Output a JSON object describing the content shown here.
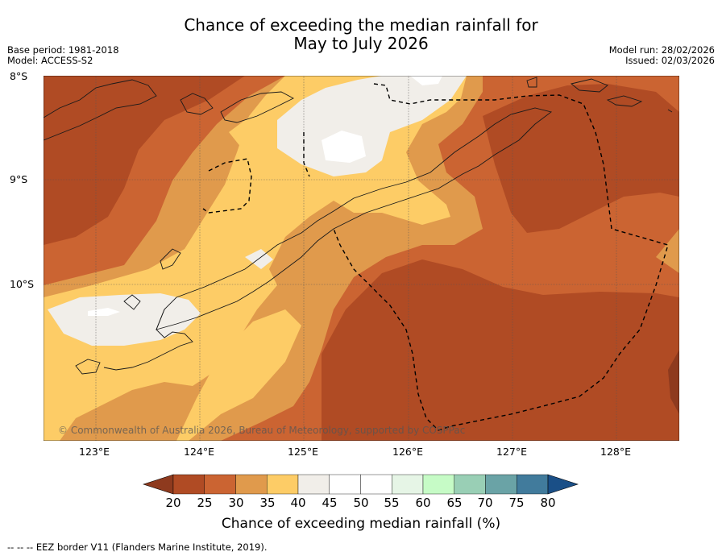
{
  "title": {
    "line1": "Chance of exceeding the median rainfall for",
    "line2": "May to July 2026"
  },
  "meta_left": {
    "base_period": "Base period: 1981-2018",
    "model": "Model: ACCESS-S2"
  },
  "meta_right": {
    "model_run": "Model run: 28/02/2026",
    "issued": "Issued: 02/03/2026"
  },
  "map": {
    "lat_labels": [
      "8°S",
      "9°S",
      "10°S"
    ],
    "lon_labels": [
      "123°E",
      "124°E",
      "125°E",
      "126°E",
      "127°E",
      "128°E"
    ],
    "copyright": "© Commonwealth of Australia 2026, Bureau of Meteorology, supported by COSPPac"
  },
  "colorbar": {
    "ticks": [
      "20",
      "25",
      "30",
      "35",
      "40",
      "45",
      "50",
      "55",
      "60",
      "65",
      "70",
      "75",
      "80"
    ],
    "colors": [
      "#8e3a1e",
      "#b04b24",
      "#cb6432",
      "#e09a4c",
      "#fdcc66",
      "#f1eee9",
      "#ffffff",
      "#ffffff",
      "#e6f5e6",
      "#c6fbc6",
      "#99cfb5",
      "#6aa3a6",
      "#417b9c",
      "#1a4f87"
    ],
    "label": "Chance of exceeding median rainfall (%)"
  },
  "footer": {
    "legend_symbol": "-- -- --",
    "legend_text": "EEZ border V11 (Flanders Marine Institute, 2019)."
  }
}
